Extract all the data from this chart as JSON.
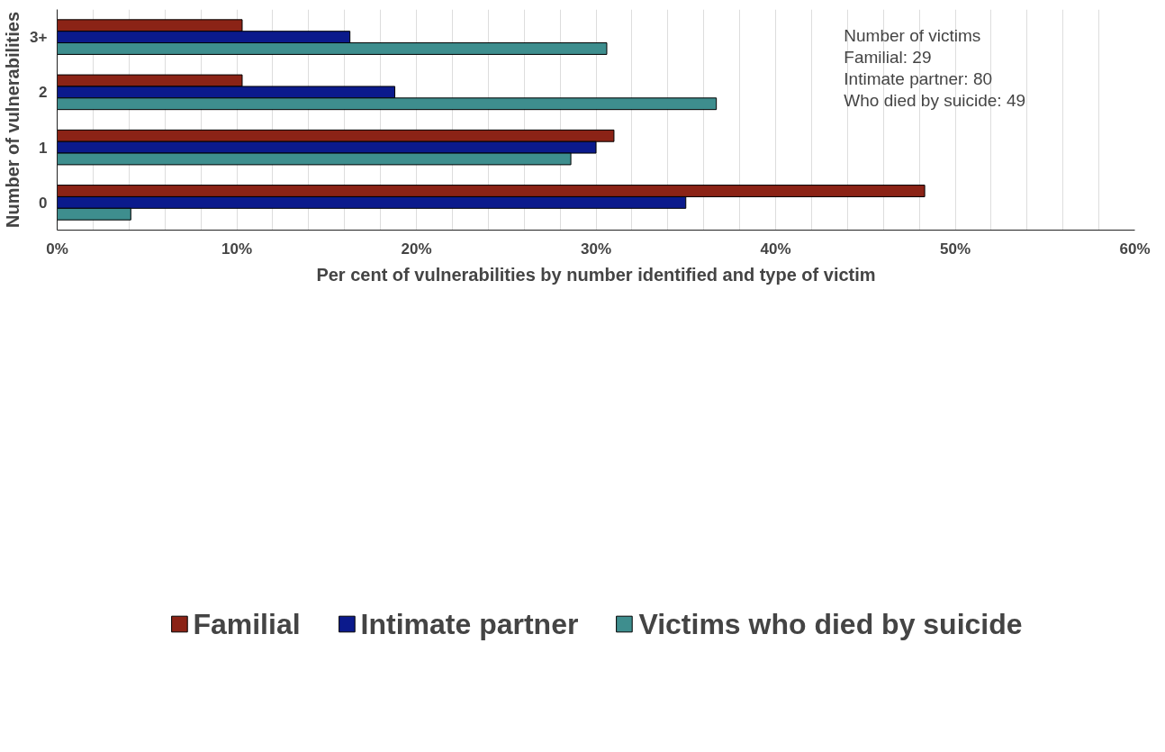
{
  "chart_data": {
    "type": "bar",
    "orientation": "horizontal",
    "categories": [
      "3+",
      "2",
      "1",
      "0"
    ],
    "series": [
      {
        "name": "Familial",
        "color": "#8b2316",
        "values": [
          10.3,
          10.3,
          31.0,
          48.3
        ]
      },
      {
        "name": "Intimate partner",
        "color": "#0b1a8c",
        "values": [
          16.3,
          18.8,
          30.0,
          35.0
        ]
      },
      {
        "name": "Victims who died by suicide",
        "color": "#3e8e8e",
        "values": [
          30.6,
          36.7,
          28.6,
          4.1
        ]
      }
    ],
    "xlabel": "Per cent of vulnerabilities by number identified and type of victim",
    "ylabel": "Number of vulnerabilities",
    "xlim": [
      0,
      60
    ],
    "xticks": [
      {
        "value": 0,
        "label": "0%"
      },
      {
        "value": 2,
        "label": null
      },
      {
        "value": 4,
        "label": null
      },
      {
        "value": 6,
        "label": null
      },
      {
        "value": 8,
        "label": null
      },
      {
        "value": 10,
        "label": "10%"
      },
      {
        "value": 12,
        "label": null
      },
      {
        "value": 14,
        "label": null
      },
      {
        "value": 16,
        "label": null
      },
      {
        "value": 18,
        "label": null
      },
      {
        "value": 20,
        "label": "20%"
      },
      {
        "value": 22,
        "label": null
      },
      {
        "value": 24,
        "label": null
      },
      {
        "value": 26,
        "label": null
      },
      {
        "value": 28,
        "label": null
      },
      {
        "value": 30,
        "label": "30%"
      },
      {
        "value": 32,
        "label": null
      },
      {
        "value": 34,
        "label": null
      },
      {
        "value": 36,
        "label": null
      },
      {
        "value": 38,
        "label": null
      },
      {
        "value": 40,
        "label": "40%"
      },
      {
        "value": 42,
        "label": null
      },
      {
        "value": 44,
        "label": null
      },
      {
        "value": 46,
        "label": null
      },
      {
        "value": 48,
        "label": null
      },
      {
        "value": 50,
        "label": "50%"
      },
      {
        "value": 52,
        "label": null
      },
      {
        "value": 54,
        "label": null
      },
      {
        "value": 56,
        "label": null
      },
      {
        "value": 58,
        "label": null
      },
      {
        "value": 60,
        "label": "60%"
      }
    ],
    "grid": "x",
    "legend": "bottom",
    "annotations": [
      "Number of victims",
      "Familial: 29",
      "Intimate partner: 80",
      "Who died by suicide: 49"
    ]
  }
}
